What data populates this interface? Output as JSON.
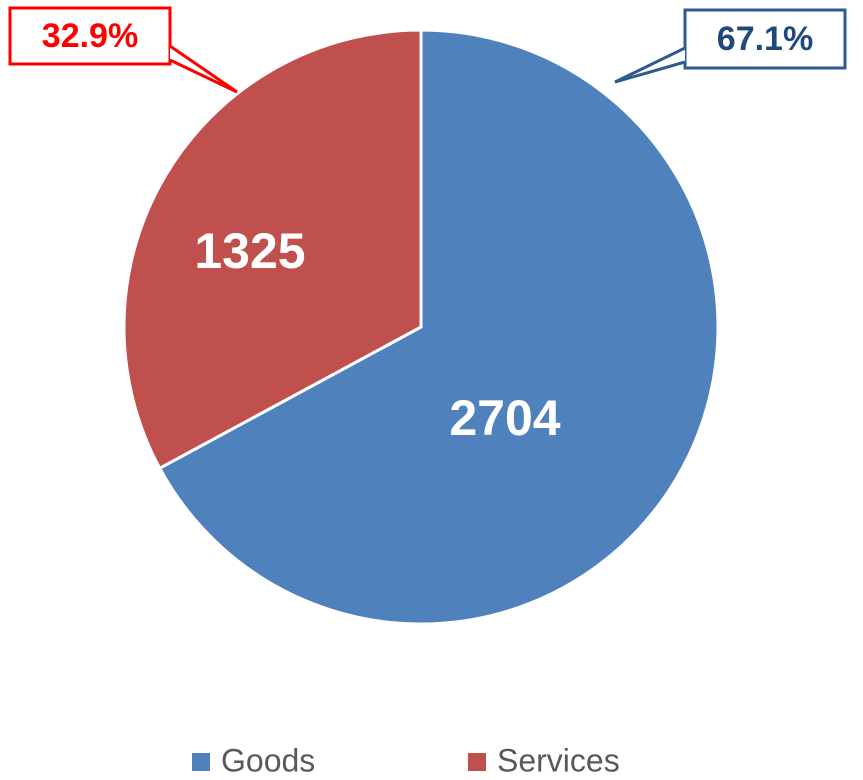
{
  "chart_data": {
    "type": "pie",
    "categories": [
      "Goods",
      "Services"
    ],
    "values": [
      2704,
      1325
    ],
    "colors": [
      "#4f81bd",
      "#c0504d"
    ],
    "percentages": [
      67.1,
      32.9
    ],
    "percentage_labels": [
      "67.1%",
      "32.9%"
    ],
    "legend": "bottom"
  }
}
